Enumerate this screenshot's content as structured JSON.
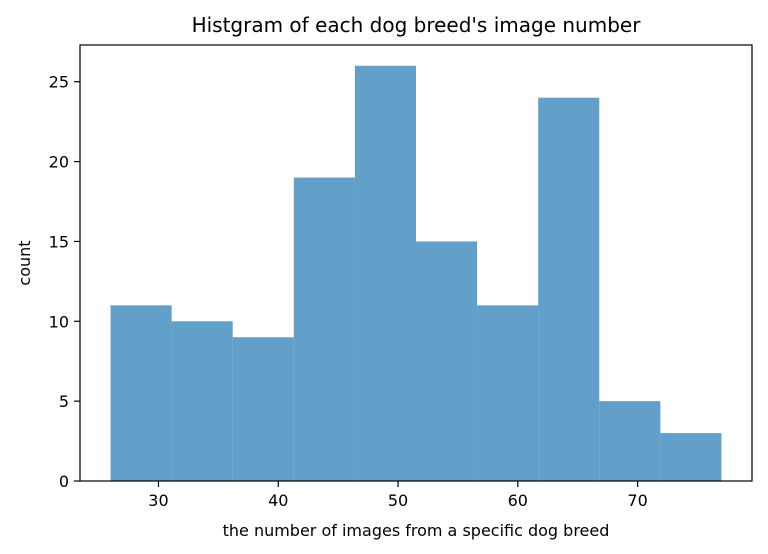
{
  "chart_data": {
    "type": "bar",
    "title": "Histgram of each dog breed's image number",
    "xlabel": "the number of images from a specific dog breed",
    "ylabel": "count",
    "bin_edges": [
      26,
      31.1,
      36.2,
      41.3,
      46.4,
      51.5,
      56.6,
      61.7,
      66.8,
      71.9,
      77
    ],
    "values": [
      11,
      10,
      9,
      19,
      26,
      15,
      11,
      24,
      5,
      3
    ],
    "xlim": [
      23.45,
      79.55
    ],
    "ylim": [
      0,
      27.3
    ],
    "xticks": [
      30,
      40,
      50,
      60,
      70
    ],
    "yticks": [
      0,
      5,
      10,
      15,
      20,
      25
    ],
    "bar_color": "#1f77b4",
    "bar_alpha": 0.7,
    "grid": false
  }
}
